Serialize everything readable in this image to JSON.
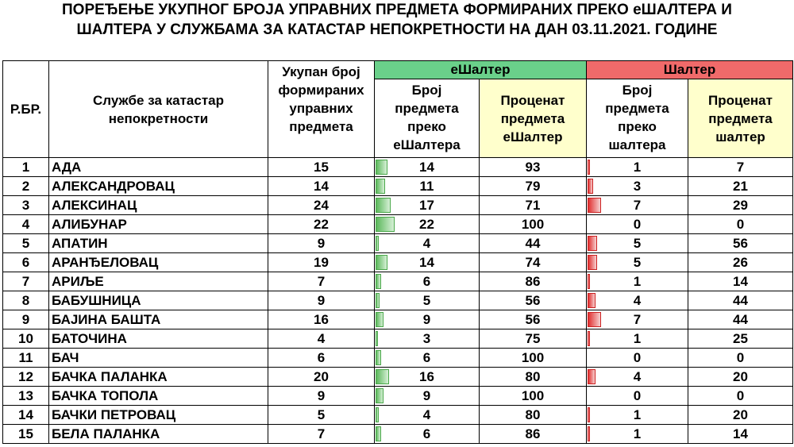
{
  "title": {
    "line1": "ПОРЕЂЕЊЕ УКУПНОГ БРОЈА УПРАВНИХ ПРЕДМЕТА ФОРМИРАНИХ ПРЕКО еШАЛТЕРА И",
    "line2": "ШАЛТЕРА У СЛУЖБАМА ЗА КАТАСТАР НЕПОКРЕТНОСТИ НА ДАН 03.11.2021. ГОДИНЕ"
  },
  "headers": {
    "rbr": "Р.БР.",
    "office": "Службе за катастар непокретности",
    "total": "Укупан број формираних управних предмета",
    "esalter_group": "еШалтер",
    "salter_group": "Шалтер",
    "e_count": "Број предмета преко еШалтера",
    "e_percent": "Проценат предмета еШалтер",
    "s_count": "Број предмета преко шалтера",
    "s_percent": "Проценат предмета шалтер"
  },
  "colors": {
    "green_header": "#6ad08a",
    "red_header": "#f06a6a",
    "yellow_header": "#ffffcc"
  },
  "rows": [
    {
      "n": "1",
      "name": "АДА",
      "total": "15",
      "e": "14",
      "ep": "93",
      "s": "1",
      "sp": "7"
    },
    {
      "n": "2",
      "name": "АЛЕКСАНДРОВАЦ",
      "total": "14",
      "e": "11",
      "ep": "79",
      "s": "3",
      "sp": "21"
    },
    {
      "n": "3",
      "name": "АЛЕКСИНАЦ",
      "total": "24",
      "e": "17",
      "ep": "71",
      "s": "7",
      "sp": "29"
    },
    {
      "n": "4",
      "name": "АЛИБУНАР",
      "total": "22",
      "e": "22",
      "ep": "100",
      "s": "0",
      "sp": "0"
    },
    {
      "n": "5",
      "name": "АПАТИН",
      "total": "9",
      "e": "4",
      "ep": "44",
      "s": "5",
      "sp": "56"
    },
    {
      "n": "6",
      "name": "АРАНЂЕЛОВАЦ",
      "total": "19",
      "e": "14",
      "ep": "74",
      "s": "5",
      "sp": "26"
    },
    {
      "n": "7",
      "name": "АРИЉЕ",
      "total": "7",
      "e": "6",
      "ep": "86",
      "s": "1",
      "sp": "14"
    },
    {
      "n": "8",
      "name": "БАБУШНИЦА",
      "total": "9",
      "e": "5",
      "ep": "56",
      "s": "4",
      "sp": "44"
    },
    {
      "n": "9",
      "name": "БАЈИНА БАШТА",
      "total": "16",
      "e": "9",
      "ep": "56",
      "s": "7",
      "sp": "44"
    },
    {
      "n": "10",
      "name": "БАТОЧИНА",
      "total": "4",
      "e": "3",
      "ep": "75",
      "s": "1",
      "sp": "25"
    },
    {
      "n": "11",
      "name": "БАЧ",
      "total": "6",
      "e": "6",
      "ep": "100",
      "s": "0",
      "sp": "0"
    },
    {
      "n": "12",
      "name": "БАЧКА ПАЛАНКА",
      "total": "20",
      "e": "16",
      "ep": "80",
      "s": "4",
      "sp": "20"
    },
    {
      "n": "13",
      "name": "БАЧКА ТОПОЛА",
      "total": "9",
      "e": "9",
      "ep": "100",
      "s": "0",
      "sp": "0"
    },
    {
      "n": "14",
      "name": "БАЧКИ ПЕТРОВАЦ",
      "total": "5",
      "e": "4",
      "ep": "80",
      "s": "1",
      "sp": "20"
    },
    {
      "n": "15",
      "name": "БЕЛА ПАЛАНКА",
      "total": "7",
      "e": "6",
      "ep": "86",
      "s": "1",
      "sp": "14"
    }
  ]
}
